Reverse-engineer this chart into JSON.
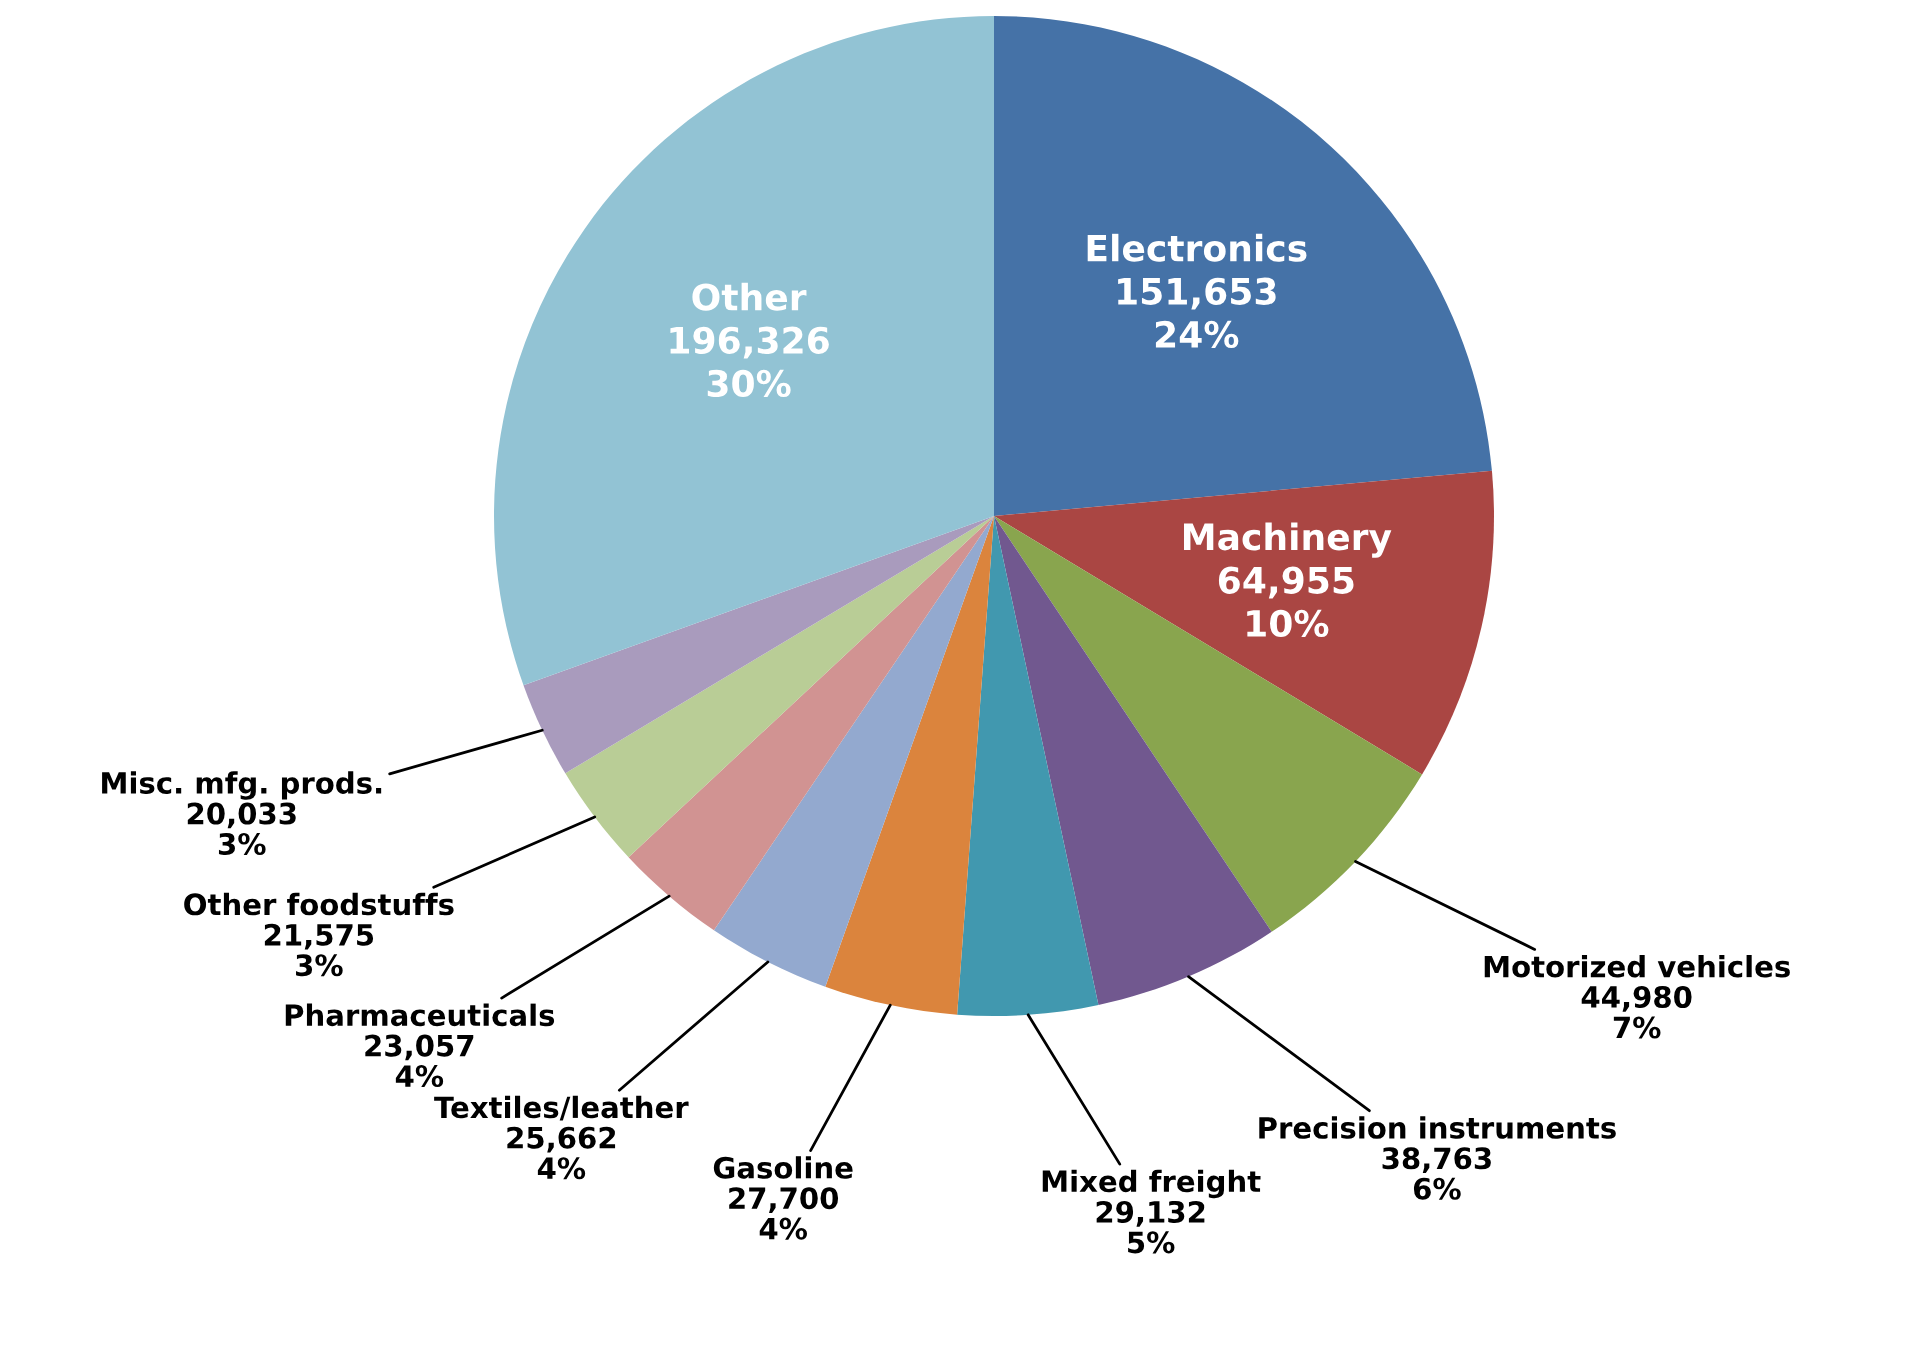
{
  "chart_data": {
    "type": "pie",
    "categories": [
      "Electronics",
      "Machinery",
      "Motorized vehicles",
      "Precision instruments",
      "Mixed freight",
      "Gasoline",
      "Textiles/leather",
      "Pharmaceuticals",
      "Other foodstuffs",
      "Misc. mfg. prods.",
      "Other"
    ],
    "values": [
      151653,
      64955,
      44980,
      38763,
      29132,
      27700,
      25662,
      23057,
      21575,
      20033,
      196326
    ],
    "value_labels": [
      "151,653\n24%",
      "64,955\n10%",
      "44,980\n7%",
      "38,763\n6%",
      "29,132\n5%",
      "27,700\n4%",
      "25,662\n4%",
      "23,057\n4%",
      "21,575\n3%",
      "20,033\n3%",
      "196,326\n30%"
    ],
    "colors": [
      "#4572a7",
      "#aa4643",
      "#89a54e",
      "#71588f",
      "#4198af",
      "#db843d",
      "#93a9cf",
      "#d19392",
      "#b9cd96",
      "#a99bbd",
      "#92c3d4"
    ]
  }
}
